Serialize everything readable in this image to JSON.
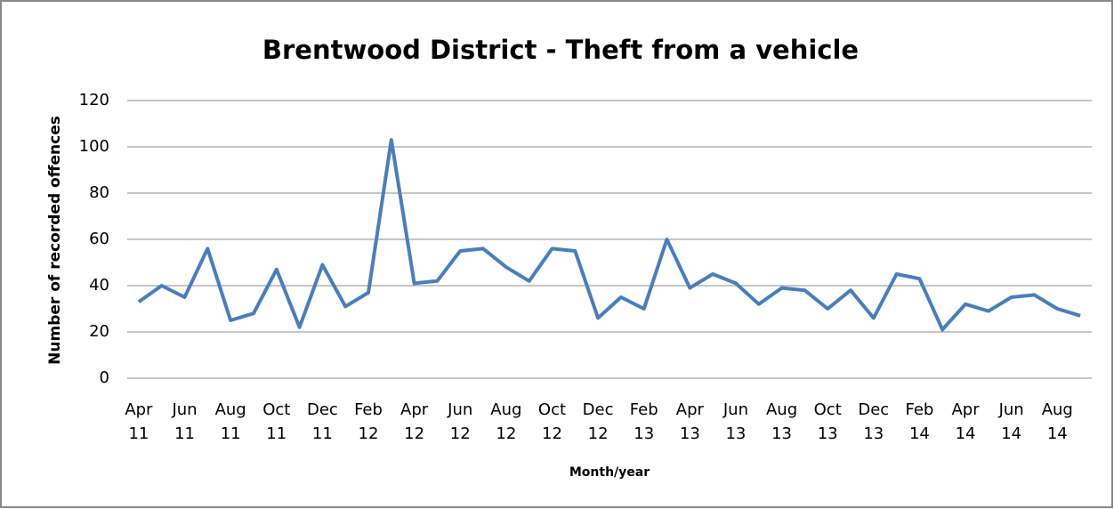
{
  "chart_data": {
    "type": "line",
    "title": "Brentwood District - Theft from a vehicle",
    "x_label": "Month/year",
    "y_label": "Number of recorded offences",
    "categories": [
      "Apr 11",
      null,
      "Jun 11",
      null,
      "Aug 11",
      null,
      "Oct 11",
      null,
      "Dec 11",
      null,
      "Feb 12",
      null,
      "Apr 12",
      null,
      "Jun 12",
      null,
      "Aug 12",
      null,
      "Oct 12",
      null,
      "Dec 12",
      null,
      "Feb 13",
      null,
      "Apr 13",
      null,
      "Jun 13",
      null,
      "Aug 13",
      null,
      "Oct 13",
      null,
      "Dec 13",
      null,
      "Feb 14",
      null,
      "Apr 14",
      null,
      "Jun 14",
      null,
      "Aug 14",
      null
    ],
    "series": [
      {
        "name": "Theft from a vehicle",
        "color": "#4a7ebb",
        "values": [
          33,
          40,
          35,
          56,
          25,
          28,
          47,
          22,
          49,
          31,
          37,
          103,
          41,
          42,
          55,
          56,
          48,
          42,
          56,
          55,
          26,
          35,
          30,
          60,
          39,
          45,
          41,
          32,
          39,
          38,
          30,
          38,
          26,
          45,
          43,
          21,
          32,
          29,
          35,
          36,
          30,
          27
        ]
      }
    ],
    "ylim": [
      0,
      120
    ],
    "yticks": [
      0,
      20,
      40,
      60,
      80,
      100,
      120
    ],
    "grid": true
  }
}
